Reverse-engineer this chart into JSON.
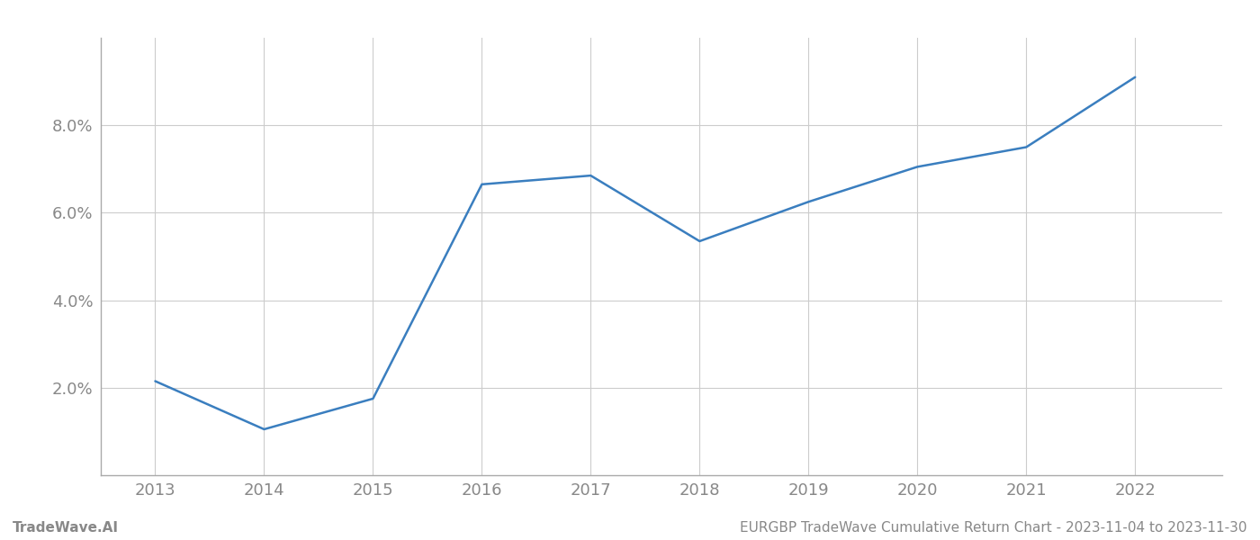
{
  "years": [
    2013,
    2014,
    2015,
    2016,
    2017,
    2018,
    2019,
    2020,
    2021,
    2022
  ],
  "values": [
    2.15,
    1.05,
    1.75,
    6.65,
    6.85,
    5.35,
    6.25,
    7.05,
    7.5,
    9.1
  ],
  "line_color": "#3a7ebf",
  "line_width": 1.8,
  "background_color": "#ffffff",
  "grid_color": "#cccccc",
  "footer_left": "TradeWave.AI",
  "footer_right": "EURGBP TradeWave Cumulative Return Chart - 2023-11-04 to 2023-11-30",
  "ylim": [
    0.0,
    10.0
  ],
  "yticks": [
    2.0,
    4.0,
    6.0,
    8.0
  ],
  "xlim": [
    2012.5,
    2022.8
  ],
  "xticks": [
    2013,
    2014,
    2015,
    2016,
    2017,
    2018,
    2019,
    2020,
    2021,
    2022
  ],
  "tick_label_color": "#888888",
  "tick_fontsize": 13,
  "footer_fontsize": 11,
  "spine_color": "#aaaaaa"
}
